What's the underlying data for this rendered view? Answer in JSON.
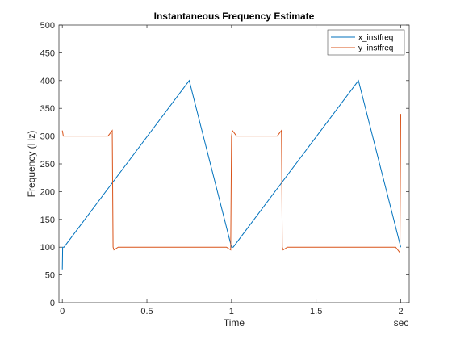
{
  "chart_data": {
    "type": "line",
    "title": "Instantaneous Frequency Estimate",
    "xlabel": "Time",
    "xunit": "sec",
    "ylabel": "Frequency (Hz)",
    "xlim": [
      -0.02,
      2.05
    ],
    "ylim": [
      0,
      500
    ],
    "xticks": [
      0,
      0.5,
      1,
      1.5,
      2
    ],
    "xtick_labels": [
      "0",
      "0.5",
      "1",
      "1.5",
      "2"
    ],
    "yticks": [
      0,
      50,
      100,
      150,
      200,
      250,
      300,
      350,
      400,
      450,
      500
    ],
    "ytick_labels": [
      "0",
      "50",
      "100",
      "150",
      "200",
      "250",
      "300",
      "350",
      "400",
      "450",
      "500"
    ],
    "grid": false,
    "legend_position": "top-right",
    "series": [
      {
        "name": "x_instfreq",
        "color": "#0072BD",
        "x": [
          0,
          0.002,
          0.01,
          0.75,
          1.0,
          1.01,
          1.75,
          2.0
        ],
        "y": [
          60,
          100,
          100,
          400,
          100,
          100,
          400,
          100
        ]
      },
      {
        "name": "y_instfreq",
        "color": "#D95319",
        "x": [
          0,
          0.006,
          0.03,
          0.27,
          0.295,
          0.3,
          0.305,
          0.33,
          0.97,
          0.995,
          1.0,
          1.005,
          1.03,
          1.27,
          1.295,
          1.3,
          1.305,
          1.33,
          1.97,
          1.995,
          2.0
        ],
        "y": [
          310,
          300,
          300,
          300,
          310,
          100,
          95,
          100,
          100,
          95,
          300,
          310,
          300,
          300,
          310,
          100,
          95,
          100,
          100,
          90,
          340
        ]
      }
    ]
  }
}
